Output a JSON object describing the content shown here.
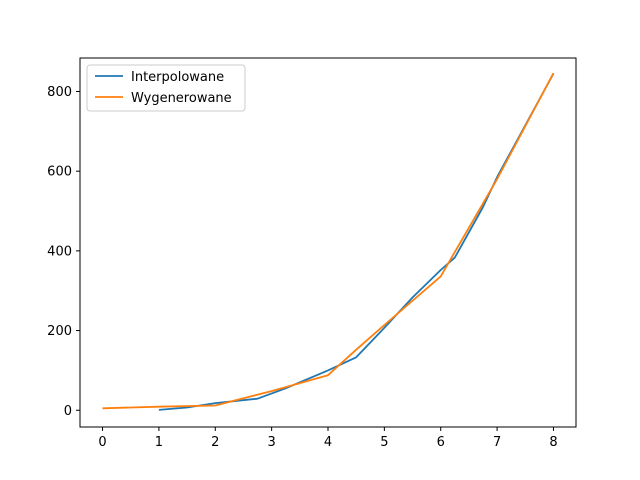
{
  "chart_data": {
    "type": "line",
    "title": "",
    "xlabel": "",
    "ylabel": "",
    "xlim": [
      -0.4,
      8.4
    ],
    "ylim": [
      -42,
      884
    ],
    "xticks": [
      0,
      1,
      2,
      3,
      4,
      5,
      6,
      7,
      8
    ],
    "yticks": [
      0,
      200,
      400,
      600,
      800
    ],
    "grid": false,
    "legend_position": "top-left",
    "series": [
      {
        "name": "Interpolowane",
        "color": "#1f77b4",
        "points": [
          [
            1,
            1
          ],
          [
            1.5,
            7
          ],
          [
            2,
            18
          ],
          [
            2.75,
            29
          ],
          [
            3.25,
            55
          ],
          [
            4,
            100
          ],
          [
            4.5,
            133
          ],
          [
            5,
            207
          ],
          [
            5.5,
            283
          ],
          [
            6,
            352
          ],
          [
            6.25,
            383
          ],
          [
            6.75,
            510
          ],
          [
            7,
            585
          ],
          [
            8,
            845
          ]
        ]
      },
      {
        "name": "Wygenerowane",
        "color": "#ff7f0e",
        "points": [
          [
            0,
            5
          ],
          [
            1,
            9
          ],
          [
            2,
            12
          ],
          [
            3,
            48
          ],
          [
            4,
            88
          ],
          [
            4.5,
            152
          ],
          [
            5,
            214
          ],
          [
            6,
            336
          ],
          [
            7,
            580
          ],
          [
            8,
            846
          ]
        ]
      }
    ]
  }
}
